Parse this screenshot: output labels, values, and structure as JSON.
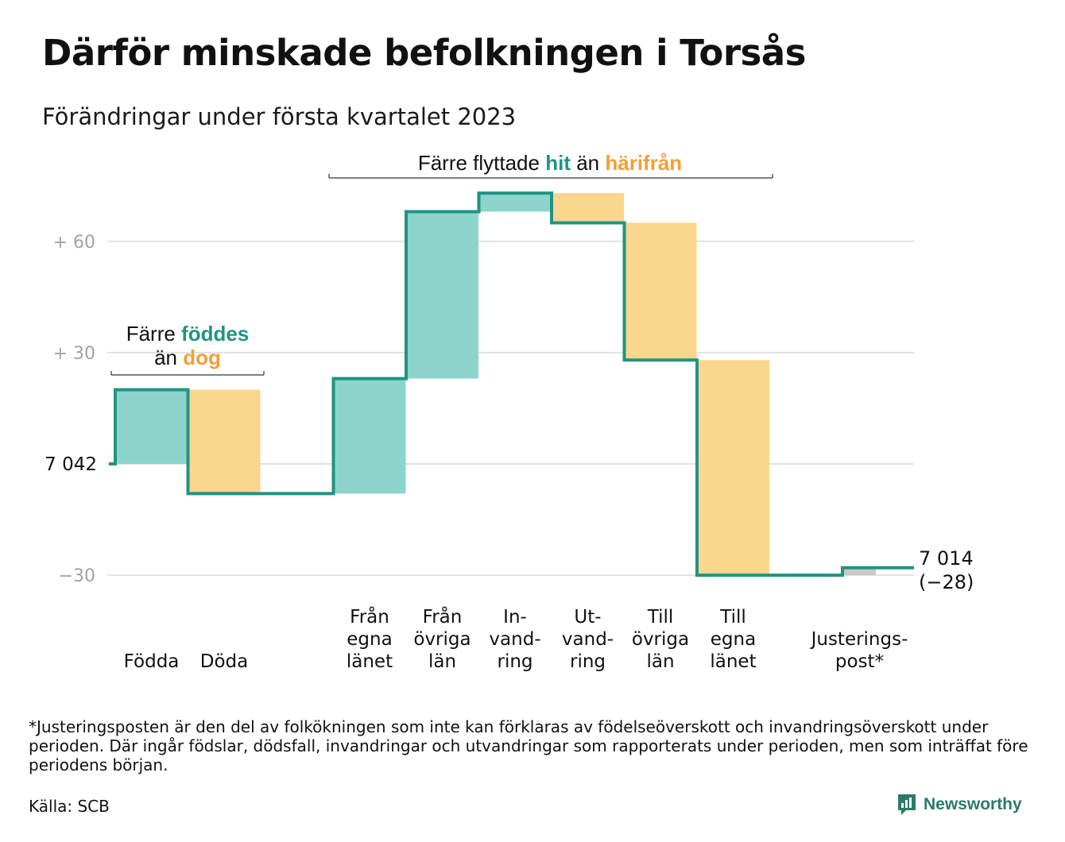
{
  "title": "Därför minskade befolkningen i Torsås",
  "subtitle": "Förändringar under första kvartalet 2023",
  "chart_data": {
    "type": "waterfall",
    "start_value": 7042,
    "start_label": "7 042",
    "end_value": 7014,
    "end_label": "7 014",
    "end_change_label": "(−28)",
    "y_ticks": [
      {
        "value": 60,
        "label": "+ 60"
      },
      {
        "value": 30,
        "label": "+ 30"
      },
      {
        "value": 0,
        "label": ""
      },
      {
        "value": -30,
        "label": "−30"
      }
    ],
    "ylim": [
      -34,
      81
    ],
    "grid": true,
    "steps": [
      {
        "label_lines": [
          "Födda"
        ],
        "change": 20,
        "kind": "increase",
        "slot": 0
      },
      {
        "label_lines": [
          "Döda"
        ],
        "change": -28,
        "kind": "decrease",
        "slot": 1
      },
      {
        "label_lines": [
          "Från",
          "egna",
          "länet"
        ],
        "change": 31,
        "kind": "increase",
        "slot": 3
      },
      {
        "label_lines": [
          "Från",
          "övriga",
          "län"
        ],
        "change": 45,
        "kind": "increase",
        "slot": 4
      },
      {
        "label_lines": [
          "In-",
          "vand-",
          "ring"
        ],
        "change": 5,
        "kind": "increase",
        "slot": 5
      },
      {
        "label_lines": [
          "Ut-",
          "vand-",
          "ring"
        ],
        "change": -8,
        "kind": "decrease",
        "slot": 6
      },
      {
        "label_lines": [
          "Till",
          "övriga",
          "län"
        ],
        "change": -37,
        "kind": "decrease",
        "slot": 7
      },
      {
        "label_lines": [
          "Till",
          "egna",
          "länet"
        ],
        "change": -58,
        "kind": "decrease",
        "slot": 8
      },
      {
        "label_lines": [
          "Justerings-",
          "post*"
        ],
        "change": 2,
        "kind": "adjustment",
        "slot": 10
      }
    ],
    "annotations": [
      {
        "id": "births",
        "parts": [
          "Färre ",
          "föddes",
          "än ",
          "dog"
        ]
      },
      {
        "id": "migration",
        "parts": [
          "Färre flyttade ",
          "hit",
          " än ",
          "härifrån"
        ]
      }
    ],
    "colors": {
      "increase": "#8dd5cc",
      "decrease": "#fad68e",
      "adjustment": "#c9c9c9",
      "line": "#1f9483",
      "accent_in": "#1f9483",
      "accent_out": "#f2a035",
      "grid": "#e2e2e2",
      "tick": "#a3a3a3"
    }
  },
  "footnote": "*Justeringsposten är den del av folkökningen som inte kan förklaras av födelseöverskott och invandringsöverskott under perioden. Där ingår födslar, dödsfall, invandringar och utvandringar som rapporterats under perioden, men som inträffat före periodens början.",
  "source": "Källa: SCB",
  "logo": {
    "text": "Newsworthy",
    "icon": "bar-chart-speech-icon"
  }
}
